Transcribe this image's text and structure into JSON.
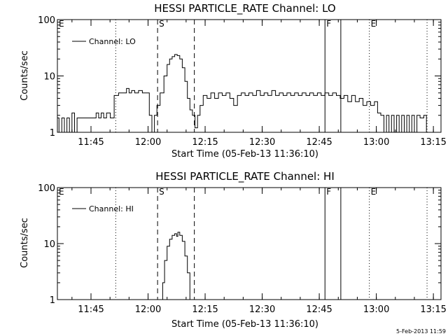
{
  "chart_data": [
    {
      "type": "line",
      "title": "HESSI PARTICLE_RATE Channel: LO",
      "xlabel": "Start Time (05-Feb-13 11:36:10)",
      "ylabel": "Counts/sec",
      "y_scale": "log",
      "ylim": [
        1,
        100
      ],
      "y_ticks": [
        "1",
        "10",
        "100"
      ],
      "xlim": [
        "11:36:10",
        "13:17:00"
      ],
      "x_ticks": [
        "11:45",
        "12:00",
        "12:15",
        "12:30",
        "12:45",
        "13:00",
        "13:15"
      ],
      "legend": {
        "label": "Channel: LO",
        "placement": "top-left"
      },
      "markers": [
        {
          "label": "E",
          "time": "11:36:10",
          "style": "dotted"
        },
        {
          "label": "",
          "time": "11:51:30",
          "style": "dotted"
        },
        {
          "label": "S",
          "time": "12:02:30",
          "style": "dashed"
        },
        {
          "label": "",
          "time": "12:12:10",
          "style": "dashed"
        },
        {
          "label": "F",
          "time": "12:46:30",
          "style": "solid"
        },
        {
          "label": "",
          "time": "12:50:40",
          "style": "solid"
        },
        {
          "label": "E",
          "time": "12:58:10",
          "style": "dotted"
        },
        {
          "label": "",
          "time": "13:13:20",
          "style": "dotted"
        }
      ],
      "series": [
        {
          "name": "Channel: LO",
          "points": [
            [
              "11:36:10",
              1.8
            ],
            [
              "11:37:00",
              1.0
            ],
            [
              "11:37:40",
              1.8
            ],
            [
              "11:38:20",
              1.0
            ],
            [
              "11:39:00",
              1.8
            ],
            [
              "11:39:40",
              1.0
            ],
            [
              "11:40:20",
              2.2
            ],
            [
              "11:41:00",
              1.0
            ],
            [
              "11:41:40",
              1.8
            ],
            [
              "11:46:00",
              1.8
            ],
            [
              "11:46:40",
              2.2
            ],
            [
              "11:47:20",
              1.8
            ],
            [
              "11:48:00",
              2.2
            ],
            [
              "11:48:40",
              1.8
            ],
            [
              "11:49:30",
              2.2
            ],
            [
              "11:50:40",
              1.8
            ],
            [
              "11:51:30",
              4.5
            ],
            [
              "11:53:00",
              5.0
            ],
            [
              "11:54:00",
              5.0
            ],
            [
              "11:54:40",
              6.0
            ],
            [
              "11:55:20",
              5.0
            ],
            [
              "11:56:00",
              5.5
            ],
            [
              "11:57:00",
              5.0
            ],
            [
              "11:58:00",
              5.5
            ],
            [
              "11:59:00",
              5.0
            ],
            [
              "12:00:00",
              5.0
            ],
            [
              "12:00:40",
              2.0
            ],
            [
              "12:01:20",
              1.0
            ],
            [
              "12:02:00",
              2.0
            ],
            [
              "12:02:40",
              3.0
            ],
            [
              "12:03:40",
              5.0
            ],
            [
              "12:04:40",
              10.0
            ],
            [
              "12:05:20",
              16.0
            ],
            [
              "12:06:00",
              20.0
            ],
            [
              "12:06:40",
              22.0
            ],
            [
              "12:07:20",
              24.0
            ],
            [
              "12:08:00",
              23.0
            ],
            [
              "12:08:40",
              20.0
            ],
            [
              "12:09:20",
              14.0
            ],
            [
              "12:10:00",
              8.0
            ],
            [
              "12:10:40",
              4.0
            ],
            [
              "12:11:20",
              2.5
            ],
            [
              "12:12:00",
              2.0
            ],
            [
              "12:12:40",
              1.2
            ],
            [
              "12:13:20",
              2.0
            ],
            [
              "12:14:00",
              3.0
            ],
            [
              "12:15:00",
              4.5
            ],
            [
              "12:16:00",
              4.0
            ],
            [
              "12:17:00",
              5.0
            ],
            [
              "12:18:00",
              4.0
            ],
            [
              "12:19:00",
              5.0
            ],
            [
              "12:20:00",
              4.5
            ],
            [
              "12:21:00",
              5.0
            ],
            [
              "12:22:00",
              4.0
            ],
            [
              "12:23:00",
              3.0
            ],
            [
              "12:24:00",
              4.5
            ],
            [
              "12:25:00",
              5.0
            ],
            [
              "12:26:00",
              4.5
            ],
            [
              "12:27:00",
              5.0
            ],
            [
              "12:28:00",
              4.5
            ],
            [
              "12:29:00",
              5.5
            ],
            [
              "12:30:00",
              4.5
            ],
            [
              "12:31:00",
              5.0
            ],
            [
              "12:32:00",
              4.5
            ],
            [
              "12:33:00",
              5.5
            ],
            [
              "12:34:00",
              4.5
            ],
            [
              "12:35:00",
              5.0
            ],
            [
              "12:36:00",
              4.5
            ],
            [
              "12:37:00",
              5.0
            ],
            [
              "12:38:00",
              4.5
            ],
            [
              "12:39:00",
              5.0
            ],
            [
              "12:40:00",
              4.5
            ],
            [
              "12:41:00",
              5.0
            ],
            [
              "12:42:00",
              4.5
            ],
            [
              "12:43:00",
              5.0
            ],
            [
              "12:44:00",
              4.5
            ],
            [
              "12:45:00",
              5.0
            ],
            [
              "12:46:00",
              4.5
            ],
            [
              "12:47:00",
              5.0
            ],
            [
              "12:48:00",
              4.5
            ],
            [
              "12:49:00",
              5.0
            ],
            [
              "12:50:00",
              4.5
            ],
            [
              "12:51:00",
              4.0
            ],
            [
              "12:52:00",
              4.5
            ],
            [
              "12:53:00",
              3.5
            ],
            [
              "12:54:00",
              4.5
            ],
            [
              "12:55:00",
              3.5
            ],
            [
              "12:56:00",
              4.0
            ],
            [
              "12:57:00",
              3.0
            ],
            [
              "12:58:00",
              3.5
            ],
            [
              "12:59:00",
              3.0
            ],
            [
              "13:00:00",
              3.5
            ],
            [
              "13:00:40",
              2.2
            ],
            [
              "13:01:40",
              2.0
            ],
            [
              "13:02:20",
              1.0
            ],
            [
              "13:03:00",
              2.0
            ],
            [
              "13:03:40",
              1.0
            ],
            [
              "13:04:20",
              2.0
            ],
            [
              "13:05:00",
              1.0
            ],
            [
              "13:05:40",
              2.0
            ],
            [
              "13:06:20",
              1.0
            ],
            [
              "13:07:00",
              2.0
            ],
            [
              "13:07:40",
              1.0
            ],
            [
              "13:08:20",
              2.0
            ],
            [
              "13:09:00",
              1.0
            ],
            [
              "13:09:40",
              2.0
            ],
            [
              "13:10:20",
              1.0
            ],
            [
              "13:11:00",
              2.0
            ],
            [
              "13:12:00",
              1.8
            ],
            [
              "13:13:00",
              2.0
            ],
            [
              "13:13:20",
              1.0
            ]
          ]
        }
      ]
    },
    {
      "type": "line",
      "title": "HESSI PARTICLE_RATE Channel: HI",
      "xlabel": "Start Time (05-Feb-13 11:36:10)",
      "ylabel": "Counts/sec",
      "y_scale": "log",
      "ylim": [
        1,
        100
      ],
      "y_ticks": [
        "1",
        "10",
        "100"
      ],
      "xlim": [
        "11:36:10",
        "13:17:00"
      ],
      "x_ticks": [
        "11:45",
        "12:00",
        "12:15",
        "12:30",
        "12:45",
        "13:00",
        "13:15"
      ],
      "legend": {
        "label": "Channel: HI",
        "placement": "top-left"
      },
      "markers": [
        {
          "label": "E",
          "time": "11:36:10",
          "style": "dotted"
        },
        {
          "label": "",
          "time": "11:51:30",
          "style": "dotted"
        },
        {
          "label": "S",
          "time": "12:02:30",
          "style": "dashed"
        },
        {
          "label": "",
          "time": "12:12:10",
          "style": "dashed"
        },
        {
          "label": "F",
          "time": "12:46:30",
          "style": "solid"
        },
        {
          "label": "",
          "time": "12:50:40",
          "style": "solid"
        },
        {
          "label": "E",
          "time": "12:58:10",
          "style": "dotted"
        },
        {
          "label": "",
          "time": "13:13:20",
          "style": "dotted"
        }
      ],
      "series": [
        {
          "name": "Channel: HI",
          "points": [
            [
              "12:03:40",
              1.0
            ],
            [
              "12:04:00",
              2.0
            ],
            [
              "12:04:40",
              5.0
            ],
            [
              "12:05:20",
              9.0
            ],
            [
              "12:06:00",
              12.0
            ],
            [
              "12:06:40",
              14.0
            ],
            [
              "12:07:20",
              15.0
            ],
            [
              "12:07:40",
              13.5
            ],
            [
              "12:08:00",
              16.0
            ],
            [
              "12:08:40",
              14.0
            ],
            [
              "12:09:20",
              11.0
            ],
            [
              "12:10:00",
              6.0
            ],
            [
              "12:10:40",
              3.0
            ],
            [
              "12:11:20",
              1.0
            ]
          ]
        }
      ]
    }
  ],
  "timestamp": "5-Feb-2013 11:59"
}
